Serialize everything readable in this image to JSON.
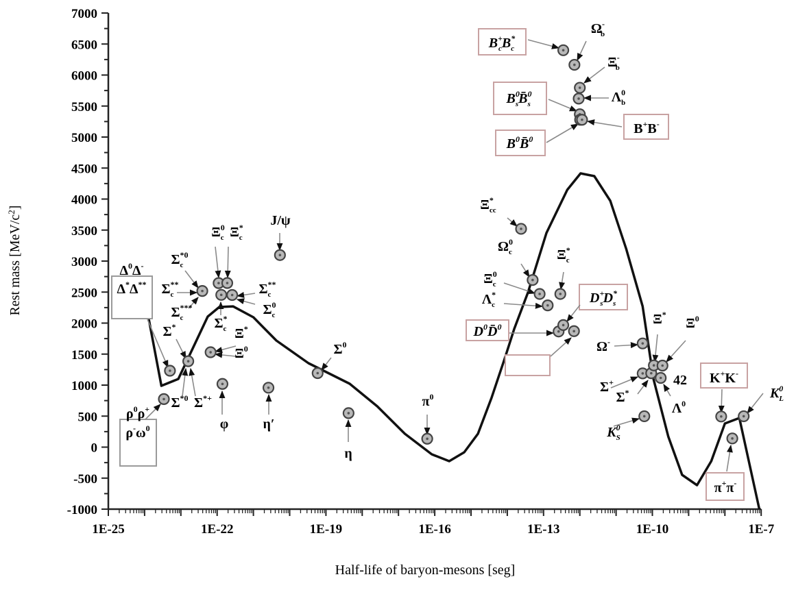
{
  "chart_data": {
    "type": "scatter",
    "title": "",
    "xlabel": "Half-life of baryon-mesons [seg]",
    "ylabel": "Rest mass [MeV/c",
    "ylabel_sup": "2",
    "ylabel_end": "]",
    "x_scale": "log",
    "xlim": [
      1e-25,
      1e-07
    ],
    "ylim": [
      -1000,
      7000
    ],
    "x_ticks": [
      "1E-25",
      "1E-22",
      "1E-19",
      "1E-16",
      "1E-13",
      "1E-10",
      "1E-7"
    ],
    "y_ticks": [
      "7000",
      "6500",
      "6000",
      "5500",
      "5000",
      "4500",
      "4000",
      "3500",
      "3000",
      "2500",
      "2000",
      "1500",
      "1000",
      "500",
      "0",
      "-500",
      "-1000"
    ],
    "grid": false,
    "colors": {
      "curve": "#111111",
      "point_fill": "#b8b8b8",
      "point_stroke": "#444444",
      "arrow": "#8a8a8a",
      "box_grey": "#9a9a9a",
      "box_pink": "#c8a2a2"
    },
    "points": [
      {
        "x": 3.4e-24,
        "y": 775
      },
      {
        "x": 5e-24,
        "y": 1232
      },
      {
        "x": 1.6e-23,
        "y": 1385
      },
      {
        "x": 3.9e-23,
        "y": 2518
      },
      {
        "x": 1.1e-22,
        "y": 2645
      },
      {
        "x": 1.9e-22,
        "y": 2646
      },
      {
        "x": 1.3e-22,
        "y": 2455
      },
      {
        "x": 2.6e-22,
        "y": 2453
      },
      {
        "x": 6.6e-23,
        "y": 1530
      },
      {
        "x": 1.4e-22,
        "y": 1019
      },
      {
        "x": 2.6e-21,
        "y": 958
      },
      {
        "x": 5.4e-21,
        "y": 3097
      },
      {
        "x": 5.9e-20,
        "y": 1193
      },
      {
        "x": 4.2e-19,
        "y": 548
      },
      {
        "x": 6.2e-17,
        "y": 135
      },
      {
        "x": 2.4e-14,
        "y": 3520
      },
      {
        "x": 5e-14,
        "y": 2695
      },
      {
        "x": 7.8e-14,
        "y": 2470
      },
      {
        "x": 1.3e-13,
        "y": 2286
      },
      {
        "x": 2.9e-13,
        "y": 2470
      },
      {
        "x": 2.6e-13,
        "y": 1865
      },
      {
        "x": 3.5e-13,
        "y": 1968
      },
      {
        "x": 6.9e-13,
        "y": 1870
      },
      {
        "x": 3.5e-13,
        "y": 6400
      },
      {
        "x": 7.1e-13,
        "y": 6165
      },
      {
        "x": 1e-12,
        "y": 5795
      },
      {
        "x": 9.3e-13,
        "y": 5620
      },
      {
        "x": 1e-12,
        "y": 5367
      },
      {
        "x": 1.02e-12,
        "y": 5279
      },
      {
        "x": 1.15e-12,
        "y": 5279
      },
      {
        "x": 5.4e-11,
        "y": 1672
      },
      {
        "x": 5.4e-11,
        "y": 1189
      },
      {
        "x": 9.3e-11,
        "y": 1192
      },
      {
        "x": 1.1e-10,
        "y": 1318
      },
      {
        "x": 1.9e-10,
        "y": 1315
      },
      {
        "x": 1.7e-10,
        "y": 1116
      },
      {
        "x": 6e-11,
        "y": 498
      },
      {
        "x": 7.9e-09,
        "y": 494
      },
      {
        "x": 3.3e-08,
        "y": 498
      },
      {
        "x": 1.6e-08,
        "y": 140
      }
    ],
    "curve": [
      {
        "x": 1.3e-24,
        "y": 2072
      },
      {
        "x": 2.9e-24,
        "y": 989
      },
      {
        "x": 8.5e-24,
        "y": 1099
      },
      {
        "x": 5.5e-23,
        "y": 2105
      },
      {
        "x": 1.15e-22,
        "y": 2260
      },
      {
        "x": 2.75e-22,
        "y": 2270
      },
      {
        "x": 1e-21,
        "y": 2094
      },
      {
        "x": 4.3e-21,
        "y": 1718
      },
      {
        "x": 3.3e-20,
        "y": 1354
      },
      {
        "x": 7.9e-20,
        "y": 1243
      },
      {
        "x": 4.5e-19,
        "y": 1022
      },
      {
        "x": 2.6e-18,
        "y": 657
      },
      {
        "x": 1.5e-17,
        "y": 215
      },
      {
        "x": 8.3e-17,
        "y": -116
      },
      {
        "x": 2.5e-16,
        "y": -227
      },
      {
        "x": 6.5e-16,
        "y": -83
      },
      {
        "x": 1.55e-15,
        "y": 215
      },
      {
        "x": 3.7e-15,
        "y": 800
      },
      {
        "x": 8.9e-15,
        "y": 1464
      },
      {
        "x": 1.55e-14,
        "y": 1906
      },
      {
        "x": 3.7e-14,
        "y": 2492
      },
      {
        "x": 1.2e-13,
        "y": 3453
      },
      {
        "x": 4.5e-13,
        "y": 4149
      },
      {
        "x": 1.05e-12,
        "y": 4414
      },
      {
        "x": 2.5e-12,
        "y": 4370
      },
      {
        "x": 6.9e-12,
        "y": 3972
      },
      {
        "x": 1.9e-11,
        "y": 3199
      },
      {
        "x": 5.4e-11,
        "y": 2271
      },
      {
        "x": 1.07e-10,
        "y": 1100
      },
      {
        "x": 2.75e-10,
        "y": 171
      },
      {
        "x": 6.6e-10,
        "y": -447
      },
      {
        "x": 1.7e-09,
        "y": -613
      },
      {
        "x": 4.2e-09,
        "y": -227
      },
      {
        "x": 1e-08,
        "y": 381
      },
      {
        "x": 2.5e-08,
        "y": 470
      },
      {
        "x": 8.9e-08,
        "y": -1000
      }
    ],
    "annotations": [
      {
        "lines": [
          [
            [
              "Δ",
              "0",
              ""
            ],
            [
              "Δ",
              "-",
              ""
            ]
          ],
          [
            [
              "Δ",
              "*",
              ""
            ],
            [
              "Δ",
              "**",
              ""
            ]
          ]
        ],
        "box": "grey",
        "target": 1
      },
      {
        "lines": [
          [
            [
              "ρ",
              "0",
              ""
            ],
            [
              "ρ",
              "+",
              ""
            ]
          ],
          [
            [
              "ρ",
              "-",
              ""
            ],
            [
              "ω",
              "0",
              ""
            ]
          ]
        ],
        "box": "grey",
        "target": 0
      },
      {
        "lines": [
          [
            [
              "Σ",
              "*",
              ""
            ]
          ]
        ],
        "target": 2
      },
      {
        "lines": [
          [
            [
              "Σ",
              "***",
              "c"
            ]
          ]
        ],
        "target": 3
      },
      {
        "lines": [
          [
            [
              "Σ",
              "*0",
              "c"
            ]
          ]
        ],
        "target": 3
      },
      {
        "lines": [
          [
            [
              "Σ",
              "**",
              "c"
            ]
          ]
        ],
        "target": 3
      },
      {
        "lines": [
          [
            [
              "Ξ",
              "0",
              "c"
            ]
          ]
        ],
        "target": 4
      },
      {
        "lines": [
          [
            [
              "Ξ",
              "*",
              "c"
            ]
          ]
        ],
        "target": 5
      },
      {
        "lines": [
          [
            [
              "Σ",
              "**",
              "c"
            ]
          ]
        ],
        "target": 7
      },
      {
        "lines": [
          [
            [
              "Σ",
              "0",
              "c"
            ]
          ]
        ],
        "target": 7
      },
      {
        "lines": [
          [
            [
              "Σ",
              "*",
              "c"
            ]
          ]
        ],
        "target": 6
      },
      {
        "lines": [
          [
            [
              "Ξ",
              "*",
              ""
            ]
          ]
        ],
        "target": 8
      },
      {
        "lines": [
          [
            [
              "Ξ",
              "0",
              ""
            ]
          ]
        ],
        "target": 8
      },
      {
        "lines": [
          [
            [
              "Σ",
              "*0",
              ""
            ]
          ]
        ],
        "target": 2
      },
      {
        "lines": [
          [
            [
              "Σ",
              "*+",
              ""
            ]
          ]
        ],
        "target": 2
      },
      {
        "lines": [
          [
            [
              "φ",
              "",
              ""
            ]
          ]
        ],
        "target": 9
      },
      {
        "lines": [
          [
            [
              "η′",
              "",
              ""
            ]
          ]
        ],
        "target": 10
      },
      {
        "lines": [
          [
            [
              "J/ψ",
              "",
              ""
            ]
          ]
        ],
        "target": 11
      },
      {
        "lines": [
          [
            [
              "Σ",
              "0",
              ""
            ]
          ]
        ],
        "target": 12
      },
      {
        "lines": [
          [
            [
              "η",
              "",
              ""
            ]
          ]
        ],
        "target": 13
      },
      {
        "lines": [
          [
            [
              "π",
              "0",
              ""
            ]
          ]
        ],
        "target": 14
      },
      {
        "lines": [
          [
            [
              "Ξ",
              "*",
              "cc"
            ]
          ]
        ],
        "target": 15
      },
      {
        "lines": [
          [
            [
              "Ω",
              "0",
              "c"
            ]
          ]
        ],
        "target": 16
      },
      {
        "lines": [
          [
            [
              "Ξ",
              "0",
              "c"
            ]
          ]
        ],
        "target": 17
      },
      {
        "lines": [
          [
            [
              "Λ",
              "*",
              "c"
            ]
          ]
        ],
        "target": 18
      },
      {
        "lines": [
          [
            [
              "Ξ",
              "*",
              "c"
            ]
          ]
        ],
        "target": 19
      },
      {
        "lines": [
          [
            [
              "D",
              "0",
              ""
            ],
            [
              "D̄",
              "0",
              ""
            ]
          ]
        ],
        "box": "pink",
        "target": 20
      },
      {
        "lines": [
          [
            [
              "D",
              "+",
              "s"
            ],
            [
              "D",
              "*",
              "s"
            ]
          ]
        ],
        "box": "pink",
        "target": 21
      },
      {
        "lines": [],
        "box": "pink",
        "target": 22
      },
      {
        "lines": [
          [
            [
              "B",
              "+",
              "c"
            ],
            [
              "B",
              "*",
              "c"
            ]
          ]
        ],
        "box": "pink",
        "target": 23
      },
      {
        "lines": [
          [
            [
              "Ω",
              "-",
              "b"
            ]
          ]
        ],
        "target": 24
      },
      {
        "lines": [
          [
            [
              "Ξ",
              "-",
              "b"
            ]
          ]
        ],
        "target": 25
      },
      {
        "lines": [
          [
            [
              "Λ",
              "0",
              "b"
            ]
          ]
        ],
        "target": 26
      },
      {
        "lines": [
          [
            [
              "B",
              "0",
              "s"
            ],
            [
              "B̄",
              "0",
              "s"
            ]
          ]
        ],
        "box": "pink",
        "target": 27
      },
      {
        "lines": [
          [
            [
              "B",
              "+",
              ""
            ],
            [
              "B",
              "-",
              ""
            ]
          ]
        ],
        "box": "pink",
        "target": 29
      },
      {
        "lines": [
          [
            [
              "B",
              "0",
              ""
            ],
            [
              "B̄",
              "0",
              ""
            ]
          ]
        ],
        "box": "pink",
        "target": 28
      },
      {
        "lines": [
          [
            [
              "Ω",
              "-",
              ""
            ]
          ]
        ],
        "target": 30
      },
      {
        "lines": [
          [
            [
              "Ξ",
              "*",
              ""
            ]
          ]
        ],
        "target": 33
      },
      {
        "lines": [
          [
            [
              "Ξ",
              "0",
              ""
            ]
          ]
        ],
        "target": 34
      },
      {
        "lines": [
          [
            [
              "Σ",
              "+",
              ""
            ]
          ]
        ],
        "target": 31
      },
      {
        "lines": [
          [
            [
              "Σ",
              "*",
              ""
            ]
          ]
        ],
        "target": 32
      },
      {
        "lines": [
          [
            [
              "42",
              "",
              ""
            ]
          ]
        ]
      },
      {
        "lines": [
          [
            [
              "Λ",
              "0",
              ""
            ]
          ]
        ],
        "target": 35
      },
      {
        "lines": [
          [
            [
              "K",
              "0",
              "S"
            ]
          ]
        ],
        "target": 36
      },
      {
        "lines": [
          [
            [
              "K",
              "+",
              ""
            ],
            [
              "K",
              "-",
              ""
            ]
          ]
        ],
        "box": "pink",
        "target": 37
      },
      {
        "lines": [
          [
            [
              "K",
              "0",
              "L"
            ]
          ]
        ],
        "target": 38
      },
      {
        "lines": [
          [
            [
              "π",
              "+",
              ""
            ],
            [
              "π",
              "-",
              ""
            ]
          ]
        ],
        "box": "pink",
        "target": 39
      }
    ]
  }
}
